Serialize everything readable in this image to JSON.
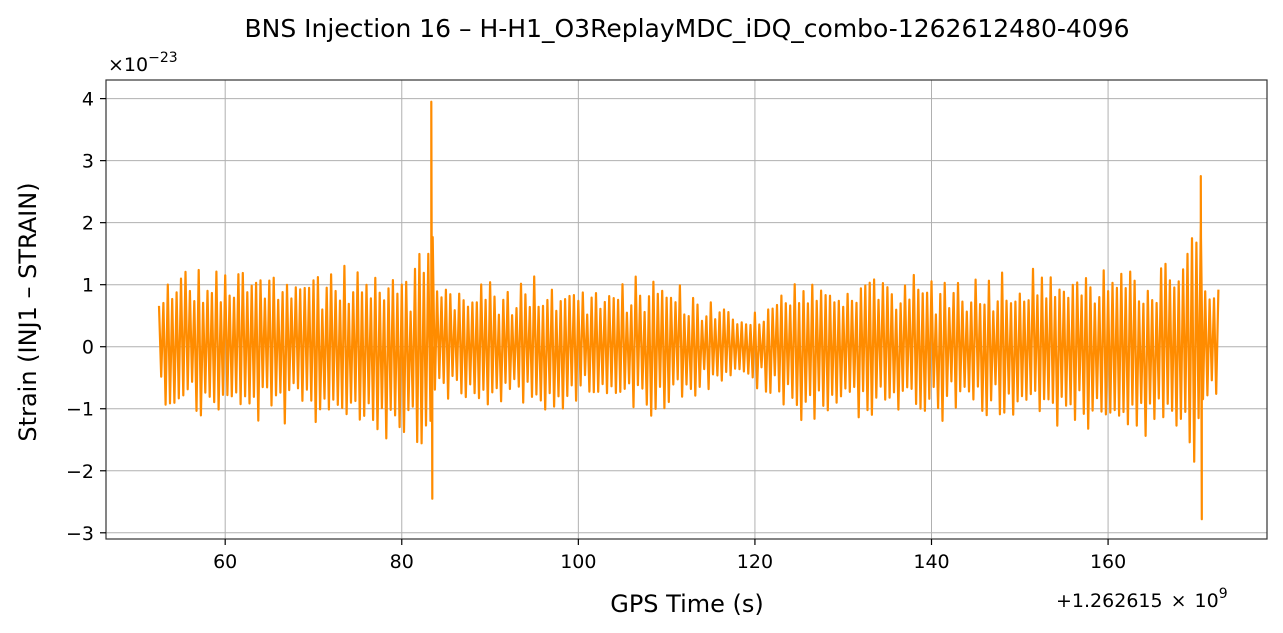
{
  "chart_data": {
    "type": "line",
    "title": "BNS Injection 16 – H-H1_O3ReplayMDC_iDQ_combo-1262612480-4096",
    "xlabel": "GPS Time (s)",
    "ylabel": "Strain (INJ1 – STRAIN)",
    "x_offset_text": "+1.262615",
    "x_offset_exp_text": "9",
    "y_scale_text": "×10",
    "y_scale_exp_text": "−23",
    "x_offset": 1262615000,
    "y_scale": 1e-23,
    "xlim": [
      46.5,
      178
    ],
    "ylim": [
      -3.1,
      4.3
    ],
    "x_ticks": [
      60,
      80,
      100,
      120,
      140,
      160
    ],
    "x_tick_labels": [
      "60",
      "80",
      "100",
      "120",
      "140",
      "160"
    ],
    "y_ticks": [
      -3,
      -2,
      -1,
      0,
      1,
      2,
      3,
      4
    ],
    "y_tick_labels": [
      "−3",
      "−2",
      "−1",
      "0",
      "1",
      "2",
      "3",
      "4"
    ],
    "grid": true,
    "legend": "none",
    "series": [
      {
        "color": "#ff8c00",
        "x_start": 52.5,
        "x_end": 172.7,
        "x_step": 0.25,
        "envelope_top": [
          [
            52.5,
            0.85
          ],
          [
            53.1,
            1.15
          ],
          [
            54.6,
            1.35
          ],
          [
            58.0,
            1.3
          ],
          [
            61.0,
            1.35
          ],
          [
            65.0,
            1.3
          ],
          [
            70.0,
            1.4
          ],
          [
            75.0,
            1.35
          ],
          [
            77.5,
            1.3
          ],
          [
            78.4,
            1.6
          ],
          [
            80.2,
            1.55
          ],
          [
            81.0,
            1.4
          ],
          [
            82.5,
            1.8
          ],
          [
            83.1,
            2.6
          ],
          [
            83.35,
            3.95
          ],
          [
            83.6,
            1.8
          ],
          [
            84.0,
            1.2
          ],
          [
            86.0,
            1.0
          ],
          [
            88.0,
            1.2
          ],
          [
            92.0,
            1.1
          ],
          [
            96.0,
            1.2
          ],
          [
            100.0,
            1.1
          ],
          [
            104.0,
            1.0
          ],
          [
            108.0,
            1.25
          ],
          [
            110.0,
            1.15
          ],
          [
            114.0,
            0.85
          ],
          [
            118.0,
            0.6
          ],
          [
            121.0,
            0.7
          ],
          [
            123.0,
            1.0
          ],
          [
            125.0,
            1.25
          ],
          [
            128.0,
            1.1
          ],
          [
            132.0,
            1.2
          ],
          [
            136.0,
            1.15
          ],
          [
            140.0,
            1.25
          ],
          [
            144.0,
            1.2
          ],
          [
            148.0,
            1.3
          ],
          [
            152.0,
            1.35
          ],
          [
            156.0,
            1.35
          ],
          [
            160.0,
            1.35
          ],
          [
            164.0,
            1.3
          ],
          [
            167.5,
            1.55
          ],
          [
            169.0,
            1.9
          ],
          [
            170.2,
            2.2
          ],
          [
            170.5,
            2.75
          ],
          [
            170.7,
            1.6
          ],
          [
            171.0,
            1.1
          ],
          [
            172.7,
            1.05
          ]
        ],
        "envelope_bottom": [
          [
            52.5,
            -0.75
          ],
          [
            53.1,
            -1.05
          ],
          [
            54.6,
            -1.1
          ],
          [
            58.0,
            -1.25
          ],
          [
            61.0,
            -1.25
          ],
          [
            65.0,
            -1.3
          ],
          [
            70.0,
            -1.3
          ],
          [
            75.0,
            -1.35
          ],
          [
            78.4,
            -1.6
          ],
          [
            80.2,
            -1.5
          ],
          [
            81.0,
            -1.65
          ],
          [
            82.5,
            -1.7
          ],
          [
            83.1,
            -1.9
          ],
          [
            83.35,
            -2.45
          ],
          [
            83.6,
            -1.0
          ],
          [
            84.0,
            -0.75
          ],
          [
            86.0,
            -0.95
          ],
          [
            88.0,
            -1.1
          ],
          [
            92.0,
            -1.05
          ],
          [
            96.0,
            -1.15
          ],
          [
            100.0,
            -1.05
          ],
          [
            104.0,
            -1.0
          ],
          [
            108.0,
            -1.15
          ],
          [
            110.0,
            -1.05
          ],
          [
            114.0,
            -0.75
          ],
          [
            118.0,
            -0.6
          ],
          [
            121.0,
            -0.8
          ],
          [
            123.0,
            -1.1
          ],
          [
            125.0,
            -1.3
          ],
          [
            128.0,
            -1.2
          ],
          [
            132.0,
            -1.2
          ],
          [
            136.0,
            -1.2
          ],
          [
            140.0,
            -1.3
          ],
          [
            144.0,
            -1.25
          ],
          [
            148.0,
            -1.3
          ],
          [
            152.0,
            -1.35
          ],
          [
            156.0,
            -1.4
          ],
          [
            160.0,
            -1.45
          ],
          [
            164.0,
            -1.6
          ],
          [
            167.5,
            -1.7
          ],
          [
            169.0,
            -1.8
          ],
          [
            170.2,
            -2.1
          ],
          [
            170.5,
            -2.78
          ],
          [
            170.7,
            -1.6
          ],
          [
            171.0,
            -1.2
          ],
          [
            172.7,
            -1.1
          ]
        ],
        "bursts": [
          [
            83.35,
            3.95,
            -2.45
          ],
          [
            170.5,
            2.75,
            -2.78
          ]
        ]
      }
    ]
  }
}
